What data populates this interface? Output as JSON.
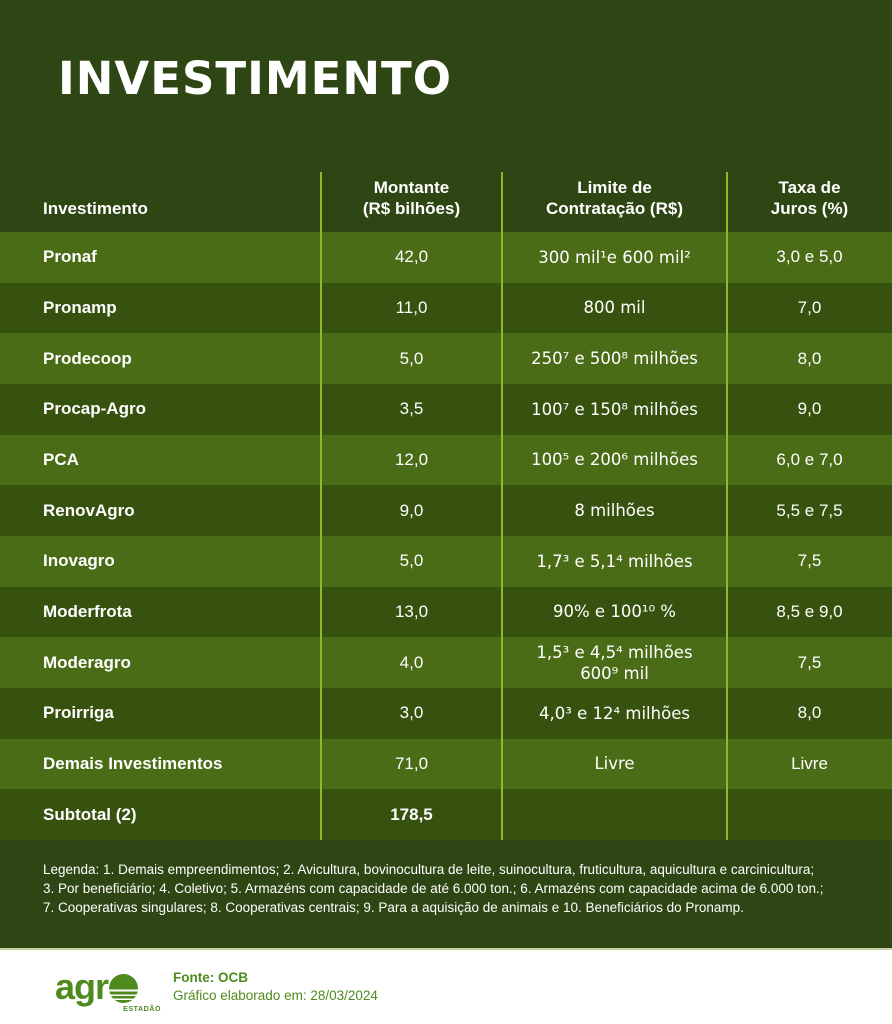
{
  "page": {
    "title": "INVESTIMENTO"
  },
  "colors": {
    "background": "#2E4514",
    "row_light": "#4A6C16",
    "row_dark": "#37520F",
    "column_divider": "#8CBA2D",
    "text": "#FFFFFF",
    "footer_green": "#4E8A1E",
    "footer_background": "#FFFFFF"
  },
  "table": {
    "headers": {
      "col1": "Investimento",
      "col2": "Montante\n(R$ bilhões)",
      "col3": "Limite de\nContratação (R$)",
      "col4": "Taxa de\nJuros (%)"
    },
    "rows": [
      {
        "name": "Pronaf",
        "montante": "42,0",
        "limite": "300 mil¹e 600 mil²",
        "juros": "3,0 e 5,0"
      },
      {
        "name": "Pronamp",
        "montante": "11,0",
        "limite": "800 mil",
        "juros": "7,0"
      },
      {
        "name": "Prodecoop",
        "montante": "5,0",
        "limite": "250⁷ e 500⁸ milhões",
        "juros": "8,0"
      },
      {
        "name": "Procap-Agro",
        "montante": "3,5",
        "limite": "100⁷ e 150⁸ milhões",
        "juros": "9,0"
      },
      {
        "name": "PCA",
        "montante": "12,0",
        "limite": "100⁵ e 200⁶ milhões",
        "juros": "6,0 e 7,0"
      },
      {
        "name": "RenovAgro",
        "montante": "9,0",
        "limite": "8 milhões",
        "juros": "5,5 e 7,5"
      },
      {
        "name": "Inovagro",
        "montante": "5,0",
        "limite": "1,7³ e 5,1⁴ milhões",
        "juros": "7,5"
      },
      {
        "name": "Moderfrota",
        "montante": "13,0",
        "limite": "90% e 100¹⁰ %",
        "juros": "8,5 e 9,0"
      },
      {
        "name": "Moderagro",
        "montante": "4,0",
        "limite": "1,5³ e 4,5⁴ milhões\n600⁹ mil",
        "juros": "7,5"
      },
      {
        "name": "Proirriga",
        "montante": "3,0",
        "limite": "4,0³ e 12⁴ milhões",
        "juros": "8,0"
      },
      {
        "name": "Demais Investimentos",
        "montante": "71,0",
        "limite": "Livre",
        "juros": "Livre"
      },
      {
        "name": "Subtotal (2)",
        "montante": "178,5",
        "limite": "",
        "juros": ""
      }
    ]
  },
  "legend": {
    "text": "Legenda: 1. Demais empreendimentos; 2. Avicultura, bovinocultura de leite, suinocultura, fruticultura, aquicultura e carcinicultura;\n3. Por beneficiário; 4. Coletivo; 5. Armazéns com capacidade de até 6.000 ton.; 6. Armazéns com capacidade acima de 6.000 ton.;\n7. Cooperativas singulares; 8. Cooperativas centrais; 9. Para a aquisição de animais e 10. Beneficiários do Pronamp."
  },
  "footer": {
    "logo_word": "agr",
    "logo_sub": "ESTADÃO",
    "source_label": "Fonte: OCB",
    "elaborated": "Gráfico elaborado em: 28/03/2024"
  },
  "chart_data": {
    "type": "table",
    "title": "INVESTIMENTO",
    "columns": [
      "Investimento",
      "Montante (R$ bilhões)",
      "Limite de Contratação (R$)",
      "Taxa de Juros (%)"
    ],
    "rows": [
      [
        "Pronaf",
        "42,0",
        "300 mil¹e 600 mil²",
        "3,0 e 5,0"
      ],
      [
        "Pronamp",
        "11,0",
        "800 mil",
        "7,0"
      ],
      [
        "Prodecoop",
        "5,0",
        "250⁷ e 500⁸ milhões",
        "8,0"
      ],
      [
        "Procap-Agro",
        "3,5",
        "100⁷ e 150⁸ milhões",
        "9,0"
      ],
      [
        "PCA",
        "12,0",
        "100⁵ e 200⁶ milhões",
        "6,0 e 7,0"
      ],
      [
        "RenovAgro",
        "9,0",
        "8 milhões",
        "5,5 e 7,5"
      ],
      [
        "Inovagro",
        "5,0",
        "1,7³ e 5,1⁴ milhões",
        "7,5"
      ],
      [
        "Moderfrota",
        "13,0",
        "90% e 100¹⁰ %",
        "8,5 e 9,0"
      ],
      [
        "Moderagro",
        "4,0",
        "1,5³ e 4,5⁴ milhões 600⁹ mil",
        "7,5"
      ],
      [
        "Proirriga",
        "3,0",
        "4,0³ e 12⁴ milhões",
        "8,0"
      ],
      [
        "Demais Investimentos",
        "71,0",
        "Livre",
        "Livre"
      ],
      [
        "Subtotal (2)",
        "178,5",
        "",
        ""
      ]
    ],
    "montante_values": [
      42.0,
      11.0,
      5.0,
      3.5,
      12.0,
      9.0,
      5.0,
      13.0,
      4.0,
      3.0,
      71.0
    ],
    "subtotal": 178.5
  }
}
